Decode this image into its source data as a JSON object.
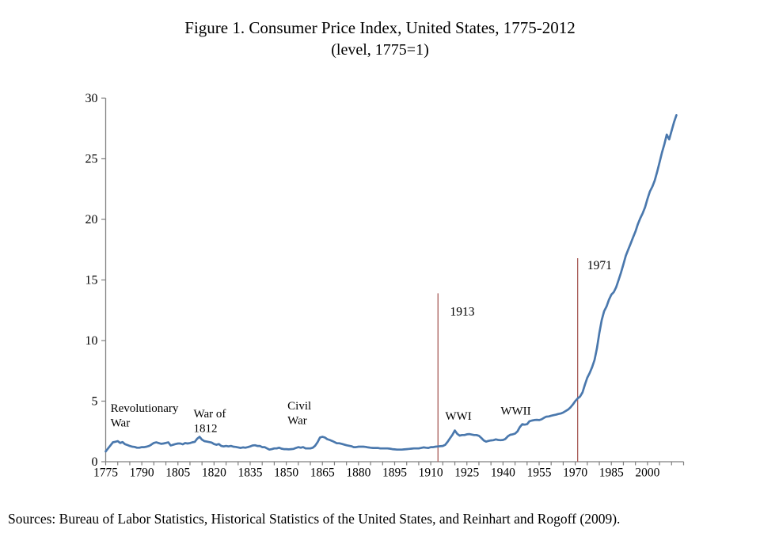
{
  "title": {
    "line1": "Figure 1. Consumer Price Index, United States, 1775-2012",
    "line2": "(level, 1775=1)"
  },
  "source": {
    "text": "Sources: Bureau of Labor Statistics, Historical Statistics of the United States, and Reinhart and Rogoff (2009)."
  },
  "chart_data": {
    "type": "line",
    "title": "Consumer Price Index, United States, 1775-2012 (level, 1775=1)",
    "xlabel": "",
    "ylabel": "",
    "xlim": [
      1775,
      2015
    ],
    "ylim": [
      0,
      30
    ],
    "grid": false,
    "legend": "none",
    "x_tick_labels": [
      1775,
      1790,
      1805,
      1820,
      1835,
      1850,
      1865,
      1880,
      1895,
      1910,
      1925,
      1940,
      1955,
      1970,
      1985,
      2000
    ],
    "x_minor_tick_step": 5,
    "y_ticks": [
      0,
      5,
      10,
      15,
      20,
      25,
      30
    ],
    "colors": {
      "line": "#4a78ad",
      "event_line": "#a85c58",
      "axis": "#808080",
      "text": "#000000"
    },
    "series": [
      {
        "name": "CPI level (1775=1)",
        "x_start": 1775,
        "x_step": 1,
        "values": [
          0.85,
          1.1,
          1.35,
          1.6,
          1.65,
          1.7,
          1.55,
          1.62,
          1.45,
          1.38,
          1.3,
          1.24,
          1.22,
          1.16,
          1.16,
          1.2,
          1.2,
          1.24,
          1.3,
          1.42,
          1.55,
          1.6,
          1.54,
          1.48,
          1.5,
          1.55,
          1.6,
          1.34,
          1.4,
          1.46,
          1.5,
          1.5,
          1.44,
          1.54,
          1.5,
          1.54,
          1.6,
          1.64,
          1.9,
          2.05,
          1.82,
          1.7,
          1.66,
          1.62,
          1.58,
          1.46,
          1.4,
          1.46,
          1.3,
          1.26,
          1.3,
          1.26,
          1.3,
          1.24,
          1.22,
          1.18,
          1.14,
          1.18,
          1.16,
          1.2,
          1.26,
          1.34,
          1.36,
          1.3,
          1.3,
          1.2,
          1.2,
          1.1,
          1.0,
          1.04,
          1.1,
          1.1,
          1.16,
          1.08,
          1.04,
          1.04,
          1.02,
          1.04,
          1.06,
          1.14,
          1.2,
          1.16,
          1.2,
          1.1,
          1.1,
          1.1,
          1.16,
          1.32,
          1.62,
          2.0,
          2.06,
          2.0,
          1.86,
          1.8,
          1.72,
          1.62,
          1.52,
          1.52,
          1.48,
          1.42,
          1.36,
          1.32,
          1.28,
          1.2,
          1.2,
          1.24,
          1.24,
          1.24,
          1.22,
          1.18,
          1.16,
          1.14,
          1.14,
          1.14,
          1.1,
          1.1,
          1.1,
          1.1,
          1.08,
          1.04,
          1.02,
          1.0,
          1.0,
          1.0,
          1.02,
          1.04,
          1.06,
          1.08,
          1.1,
          1.1,
          1.1,
          1.14,
          1.18,
          1.16,
          1.14,
          1.2,
          1.2,
          1.24,
          1.26,
          1.28,
          1.3,
          1.4,
          1.64,
          1.94,
          2.22,
          2.58,
          2.3,
          2.16,
          2.2,
          2.2,
          2.26,
          2.28,
          2.24,
          2.2,
          2.2,
          2.14,
          1.96,
          1.76,
          1.66,
          1.72,
          1.76,
          1.78,
          1.84,
          1.8,
          1.78,
          1.8,
          1.88,
          2.1,
          2.22,
          2.26,
          2.32,
          2.5,
          2.86,
          3.1,
          3.06,
          3.1,
          3.34,
          3.4,
          3.44,
          3.46,
          3.44,
          3.5,
          3.62,
          3.72,
          3.74,
          3.8,
          3.84,
          3.88,
          3.94,
          3.98,
          4.06,
          4.18,
          4.3,
          4.48,
          4.72,
          5.0,
          5.22,
          5.38,
          5.72,
          6.35,
          6.93,
          7.33,
          7.8,
          8.4,
          9.35,
          10.6,
          11.7,
          12.42,
          12.82,
          13.37,
          13.8,
          14.0,
          14.4,
          15.0,
          15.6,
          16.3,
          17.0,
          17.5,
          18.0,
          18.5,
          19.0,
          19.6,
          20.1,
          20.5,
          21.0,
          21.7,
          22.3,
          22.7,
          23.2,
          23.9,
          24.7,
          25.5,
          26.2,
          27.0,
          26.6,
          27.3,
          28.0,
          28.6
        ]
      }
    ],
    "event_lines": [
      {
        "year": 1913,
        "top_value": 13.9,
        "label": "1913",
        "label_x": 1918.0,
        "label_y": 12.75
      },
      {
        "year": 1971,
        "top_value": 16.8,
        "label": "1971",
        "label_x": 1975.0,
        "label_y": 16.55
      }
    ],
    "annotations": [
      {
        "lines": [
          "Revolutionary",
          "War"
        ],
        "x": 1777.0,
        "y": 4.75
      },
      {
        "lines": [
          "War of",
          "1812"
        ],
        "x": 1811.5,
        "y": 4.3
      },
      {
        "lines": [
          "Civil",
          "War"
        ],
        "x": 1850.5,
        "y": 4.95
      },
      {
        "lines": [
          "WWI"
        ],
        "x": 1916.0,
        "y": 4.1
      },
      {
        "lines": [
          "WWII"
        ],
        "x": 1939.0,
        "y": 4.5
      }
    ]
  }
}
